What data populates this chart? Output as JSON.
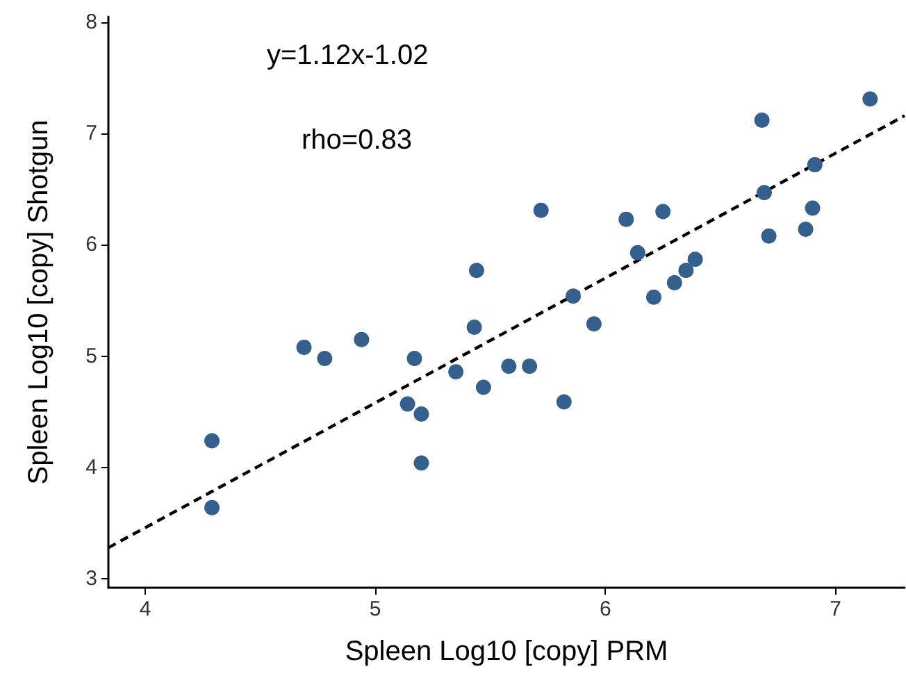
{
  "chart_data": {
    "type": "scatter",
    "xlabel": "Spleen Log10 [copy] PRM",
    "ylabel": "Spleen Log10 [copy] Shotgun",
    "annotations": [
      "y=1.12x-1.02",
      "rho=0.83"
    ],
    "xlim": [
      3.84,
      7.3
    ],
    "xticks": [
      4,
      5,
      6,
      7
    ],
    "ylim": [
      2.92,
      8.05
    ],
    "yticks": [
      3,
      4,
      5,
      6,
      7,
      8
    ],
    "grid": false,
    "marker": "circle",
    "series": [
      {
        "color": "#355f8d",
        "x": [
          4.29,
          4.29,
          4.69,
          4.78,
          4.94,
          5.14,
          5.17,
          5.2,
          5.2,
          5.35,
          5.43,
          5.44,
          5.47,
          5.58,
          5.67,
          5.72,
          5.82,
          5.86,
          5.95,
          6.09,
          6.14,
          6.21,
          6.25,
          6.3,
          6.35,
          6.39,
          6.68,
          6.69,
          6.71,
          6.87,
          6.9,
          6.91,
          7.15
        ],
        "values": [
          3.64,
          4.24,
          5.08,
          4.98,
          5.15,
          4.57,
          4.98,
          4.48,
          4.04,
          4.86,
          5.26,
          5.77,
          4.72,
          4.91,
          4.91,
          6.31,
          4.59,
          5.54,
          5.29,
          6.23,
          5.93,
          5.53,
          6.3,
          5.66,
          5.77,
          5.87,
          7.12,
          6.47,
          6.08,
          6.14,
          6.33,
          6.72,
          7.31
        ]
      },
      {
        "type": "line",
        "color": "#000000",
        "line_style": "dashed",
        "marker": "none",
        "x": [
          3.84,
          7.3
        ],
        "values": [
          3.28,
          7.16
        ]
      }
    ]
  }
}
